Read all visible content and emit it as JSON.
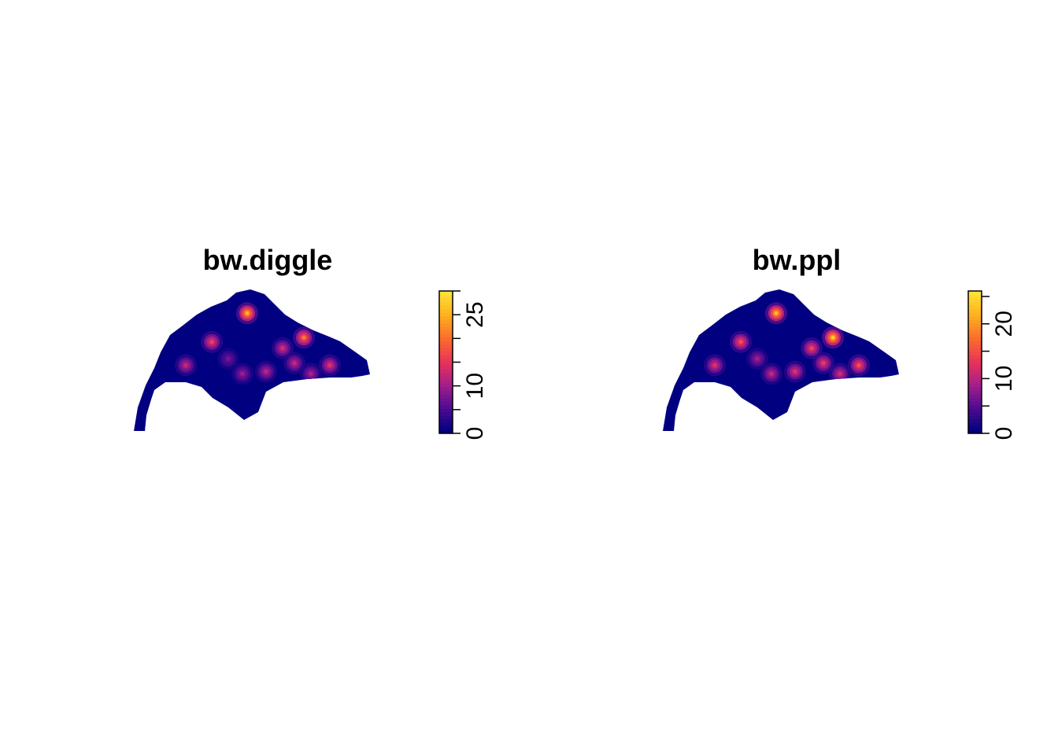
{
  "chart_data": [
    {
      "type": "heatmap",
      "title": "bw.diggle",
      "colorbar": {
        "range": [
          0,
          30
        ],
        "ticks": [
          0,
          5,
          10,
          15,
          20,
          25,
          30
        ],
        "tick_labels": [
          "0",
          "",
          "10",
          "",
          "",
          "25",
          ""
        ],
        "colors": [
          "#000080",
          "#4b0b91",
          "#a21e8c",
          "#e8325a",
          "#fb6a2e",
          "#fdae1f",
          "#ffe135"
        ]
      },
      "hotspots": [
        {
          "x": 0.48,
          "y": 0.85,
          "value": 27
        },
        {
          "x": 0.72,
          "y": 0.62,
          "value": 22
        },
        {
          "x": 0.33,
          "y": 0.58,
          "value": 17
        },
        {
          "x": 0.63,
          "y": 0.52,
          "value": 14
        },
        {
          "x": 0.83,
          "y": 0.36,
          "value": 15
        },
        {
          "x": 0.22,
          "y": 0.36,
          "value": 13
        },
        {
          "x": 0.56,
          "y": 0.3,
          "value": 12
        },
        {
          "x": 0.68,
          "y": 0.38,
          "value": 13
        },
        {
          "x": 0.46,
          "y": 0.28,
          "value": 10
        },
        {
          "x": 0.75,
          "y": 0.28,
          "value": 11
        },
        {
          "x": 0.4,
          "y": 0.42,
          "value": 8
        }
      ]
    },
    {
      "type": "heatmap",
      "title": "bw.ppl",
      "colorbar": {
        "range": [
          0,
          26
        ],
        "ticks": [
          0,
          5,
          10,
          15,
          20,
          25
        ],
        "tick_labels": [
          "0",
          "",
          "10",
          "",
          "20",
          ""
        ],
        "colors": [
          "#000080",
          "#4b0b91",
          "#a21e8c",
          "#e8325a",
          "#fb6a2e",
          "#fdae1f",
          "#ffe135"
        ]
      },
      "hotspots": [
        {
          "x": 0.48,
          "y": 0.85,
          "value": 24
        },
        {
          "x": 0.72,
          "y": 0.62,
          "value": 25
        },
        {
          "x": 0.33,
          "y": 0.58,
          "value": 16
        },
        {
          "x": 0.63,
          "y": 0.52,
          "value": 15
        },
        {
          "x": 0.83,
          "y": 0.36,
          "value": 16
        },
        {
          "x": 0.22,
          "y": 0.36,
          "value": 13
        },
        {
          "x": 0.56,
          "y": 0.3,
          "value": 13
        },
        {
          "x": 0.68,
          "y": 0.38,
          "value": 14
        },
        {
          "x": 0.46,
          "y": 0.28,
          "value": 11
        },
        {
          "x": 0.75,
          "y": 0.28,
          "value": 12
        },
        {
          "x": 0.4,
          "y": 0.42,
          "value": 9
        }
      ]
    }
  ]
}
